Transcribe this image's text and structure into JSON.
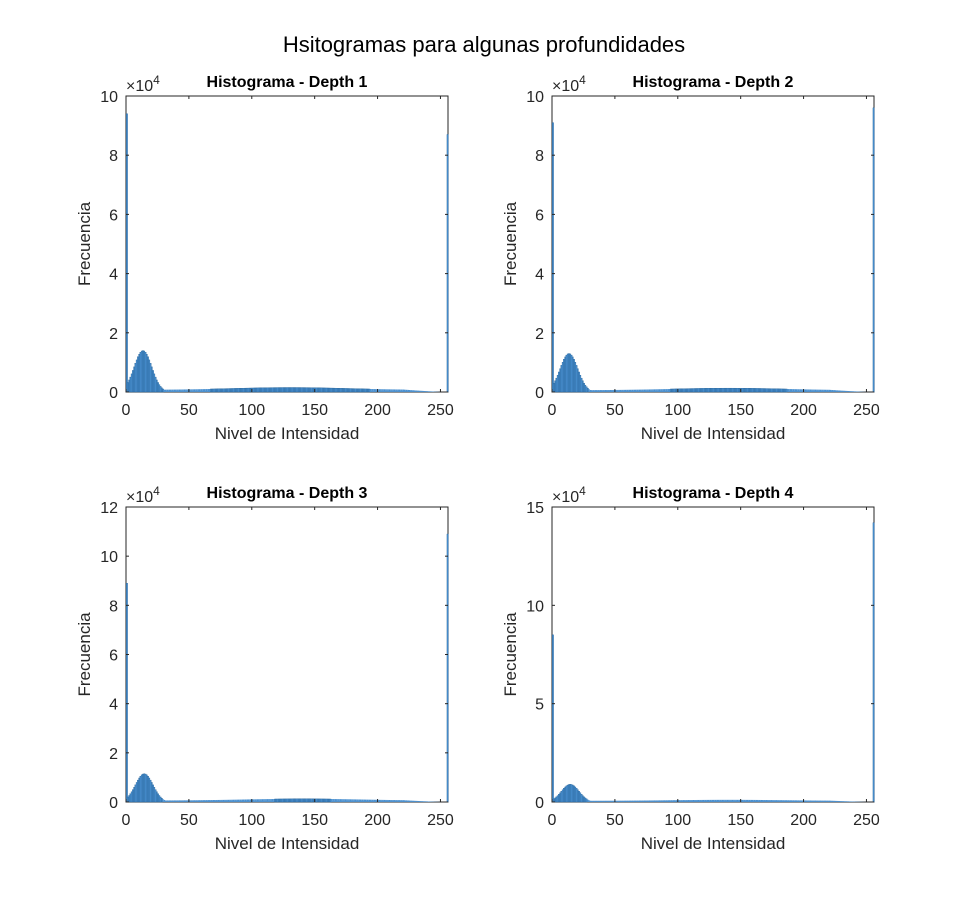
{
  "figure": {
    "suptitle": "Hsitogramas para algunas profundidades",
    "bar_color": "#4A90D0",
    "bar_edge_color": "#1F5E95",
    "axis_color": "#262626"
  },
  "chart_data": [
    {
      "type": "bar",
      "title": "Histograma - Depth 1",
      "xlabel": "Nivel de Intensidad",
      "ylabel": "Frecuencia",
      "exponent_label": "×10",
      "exponent": "4",
      "xlim": [
        0,
        256
      ],
      "ylim": [
        0,
        10
      ],
      "xticks": [
        0,
        50,
        100,
        150,
        200,
        250
      ],
      "yticks": [
        0,
        2,
        4,
        6,
        8,
        10
      ],
      "spike_low": 9.4,
      "spike_high": 8.7,
      "peak_x": 13,
      "peak_value": 1.4,
      "peak_width": 7,
      "floor_value": 0.12,
      "hump_center": 130,
      "hump_value": 0.08,
      "hump_width": 45
    },
    {
      "type": "bar",
      "title": "Histograma - Depth 2",
      "xlabel": "Nivel de Intensidad",
      "ylabel": "Frecuencia",
      "exponent_label": "×10",
      "exponent": "4",
      "xlim": [
        0,
        256
      ],
      "ylim": [
        0,
        10
      ],
      "xticks": [
        0,
        50,
        100,
        150,
        200,
        250
      ],
      "yticks": [
        0,
        2,
        4,
        6,
        8,
        10
      ],
      "spike_low": 9.1,
      "spike_high": 9.6,
      "peak_x": 13,
      "peak_value": 1.3,
      "peak_width": 7,
      "floor_value": 0.1,
      "hump_center": 140,
      "hump_value": 0.07,
      "hump_width": 45
    },
    {
      "type": "bar",
      "title": "Histograma - Depth 3",
      "xlabel": "Nivel de Intensidad",
      "ylabel": "Frecuencia",
      "exponent_label": "×10",
      "exponent": "4",
      "xlim": [
        0,
        256
      ],
      "ylim": [
        0,
        12
      ],
      "xticks": [
        0,
        50,
        100,
        150,
        200,
        250
      ],
      "yticks": [
        0,
        2,
        4,
        6,
        8,
        10,
        12
      ],
      "spike_low": 8.9,
      "spike_high": 10.9,
      "peak_x": 14,
      "peak_value": 1.15,
      "peak_width": 7,
      "floor_value": 0.1,
      "hump_center": 140,
      "hump_value": 0.07,
      "hump_width": 45
    },
    {
      "type": "bar",
      "title": "Histograma - Depth 4",
      "xlabel": "Nivel de Intensidad",
      "ylabel": "Frecuencia",
      "exponent_label": "×10",
      "exponent": "4",
      "xlim": [
        0,
        256
      ],
      "ylim": [
        0,
        15
      ],
      "xticks": [
        0,
        50,
        100,
        150,
        200,
        250
      ],
      "yticks": [
        0,
        5,
        10,
        15
      ],
      "spike_low": 8.5,
      "spike_high": 14.2,
      "peak_x": 14,
      "peak_value": 0.9,
      "peak_width": 7,
      "floor_value": 0.1,
      "hump_center": 140,
      "hump_value": 0.05,
      "hump_width": 45
    }
  ]
}
